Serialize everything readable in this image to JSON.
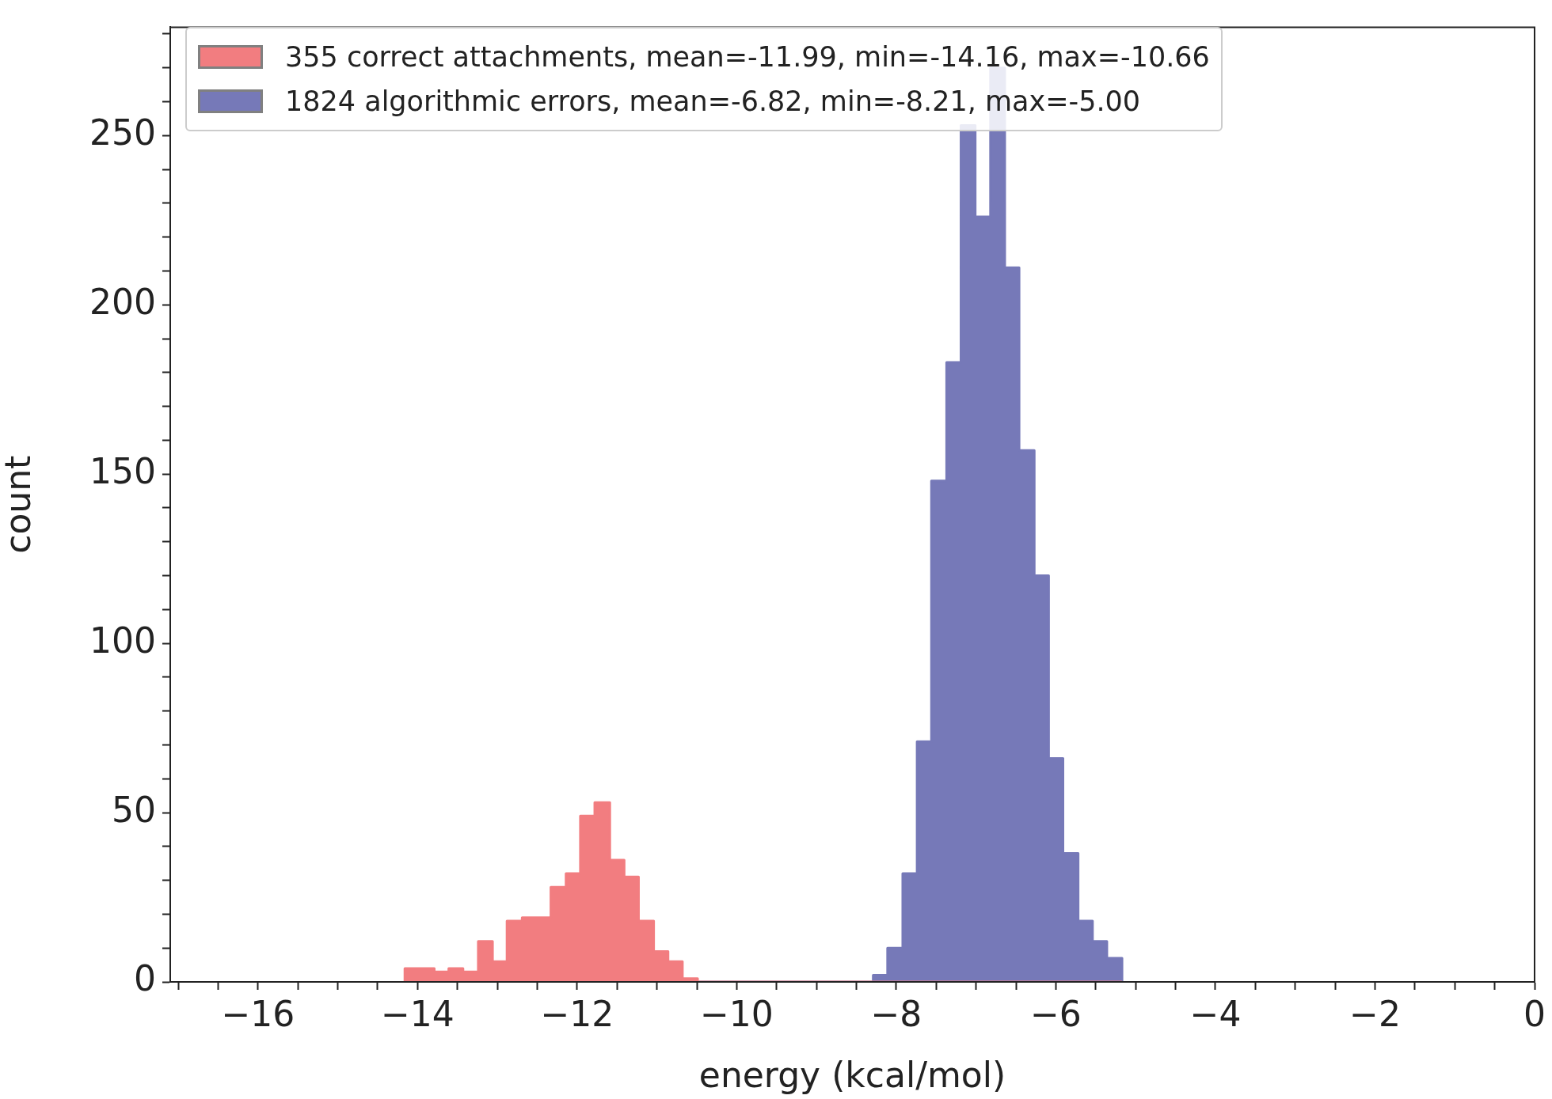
{
  "chart_data": {
    "type": "histogram",
    "xlabel": "energy (kcal/mol)",
    "ylabel": "count",
    "bins": [
      -14.16,
      -13.98,
      -13.79,
      -13.61,
      -13.43,
      -13.24,
      -13.06,
      -12.88,
      -12.69,
      -12.51,
      -12.33,
      -12.14,
      -11.96,
      -11.78,
      -11.59,
      -11.41,
      -11.23,
      -11.04,
      -10.86,
      -10.68,
      -10.49,
      -10.31,
      -10.13,
      -9.94,
      -9.76,
      -9.57,
      -9.39,
      -9.21,
      -9.02,
      -8.84,
      -8.66,
      -8.47,
      -8.29,
      -8.11,
      -7.92,
      -7.74,
      -7.56,
      -7.37,
      -7.19,
      -7.01,
      -6.82,
      -6.64,
      -6.46,
      -6.27,
      -6.09,
      -5.91,
      -5.72,
      -5.54,
      -5.36,
      -5.17
    ],
    "series": [
      {
        "name": "355 correct attachments, mean=-11.99, min=-14.16, max=-10.66",
        "color": "#f27d80",
        "values": [
          4,
          4,
          3,
          4,
          3,
          12,
          6,
          18,
          19,
          19,
          28,
          32,
          49,
          53,
          36,
          31,
          18,
          9,
          6,
          1,
          0,
          0,
          0,
          0,
          0,
          0,
          0,
          0,
          0,
          0,
          0,
          0,
          0,
          0,
          0,
          0,
          0,
          0,
          0,
          0,
          0,
          0,
          0,
          0,
          0,
          0,
          0,
          0,
          0
        ]
      },
      {
        "name": "1824 algorithmic errors, mean=-6.82, min=-8.21, max=-5.00",
        "color": "#7679b8",
        "values": [
          0,
          0,
          0,
          0,
          0,
          0,
          0,
          0,
          0,
          0,
          0,
          0,
          0,
          0,
          0,
          0,
          0,
          0,
          0,
          0,
          0,
          0,
          0,
          0,
          0,
          0,
          0,
          0,
          0,
          0,
          0,
          0,
          2,
          10,
          32,
          71,
          148,
          183,
          253,
          226,
          270,
          211,
          157,
          120,
          66,
          38,
          18,
          12,
          7
        ]
      }
    ],
    "xlim": [
      -17.1,
      0
    ],
    "ylim": [
      0,
      282
    ],
    "xticks": [
      {
        "value": -17,
        "label": null
      },
      {
        "value": -16.5,
        "label": null
      },
      {
        "value": -16,
        "label": "−16"
      },
      {
        "value": -15.5,
        "label": null
      },
      {
        "value": -15,
        "label": null
      },
      {
        "value": -14.5,
        "label": null
      },
      {
        "value": -14,
        "label": "−14"
      },
      {
        "value": -13.5,
        "label": null
      },
      {
        "value": -13,
        "label": null
      },
      {
        "value": -12.5,
        "label": null
      },
      {
        "value": -12,
        "label": "−12"
      },
      {
        "value": -11.5,
        "label": null
      },
      {
        "value": -11,
        "label": null
      },
      {
        "value": -10.5,
        "label": null
      },
      {
        "value": -10,
        "label": "−10"
      },
      {
        "value": -9.5,
        "label": null
      },
      {
        "value": -9,
        "label": null
      },
      {
        "value": -8.5,
        "label": null
      },
      {
        "value": -8,
        "label": "−8"
      },
      {
        "value": -7.5,
        "label": null
      },
      {
        "value": -7,
        "label": null
      },
      {
        "value": -6.5,
        "label": null
      },
      {
        "value": -6,
        "label": "−6"
      },
      {
        "value": -5.5,
        "label": null
      },
      {
        "value": -5,
        "label": null
      },
      {
        "value": -4.5,
        "label": null
      },
      {
        "value": -4,
        "label": "−4"
      },
      {
        "value": -3.5,
        "label": null
      },
      {
        "value": -3,
        "label": null
      },
      {
        "value": -2.5,
        "label": null
      },
      {
        "value": -2,
        "label": "−2"
      },
      {
        "value": -1.5,
        "label": null
      },
      {
        "value": -1,
        "label": null
      },
      {
        "value": -0.5,
        "label": null
      },
      0
    ],
    "yticks": [
      0,
      {
        "value": 10,
        "label": null
      },
      {
        "value": 20,
        "label": null
      },
      {
        "value": 30,
        "label": null
      },
      {
        "value": 40,
        "label": null
      },
      50,
      {
        "value": 60,
        "label": null
      },
      {
        "value": 70,
        "label": null
      },
      {
        "value": 80,
        "label": null
      },
      {
        "value": 90,
        "label": null
      },
      100,
      {
        "value": 110,
        "label": null
      },
      {
        "value": 120,
        "label": null
      },
      {
        "value": 130,
        "label": null
      },
      {
        "value": 140,
        "label": null
      },
      150,
      {
        "value": 160,
        "label": null
      },
      {
        "value": 170,
        "label": null
      },
      {
        "value": 180,
        "label": null
      },
      {
        "value": 190,
        "label": null
      },
      200,
      {
        "value": 210,
        "label": null
      },
      {
        "value": 220,
        "label": null
      },
      {
        "value": 230,
        "label": null
      },
      {
        "value": 240,
        "label": null
      },
      250,
      {
        "value": 260,
        "label": null
      },
      {
        "value": 270,
        "label": null
      },
      {
        "value": 280,
        "label": null
      }
    ],
    "legend": "top left"
  }
}
